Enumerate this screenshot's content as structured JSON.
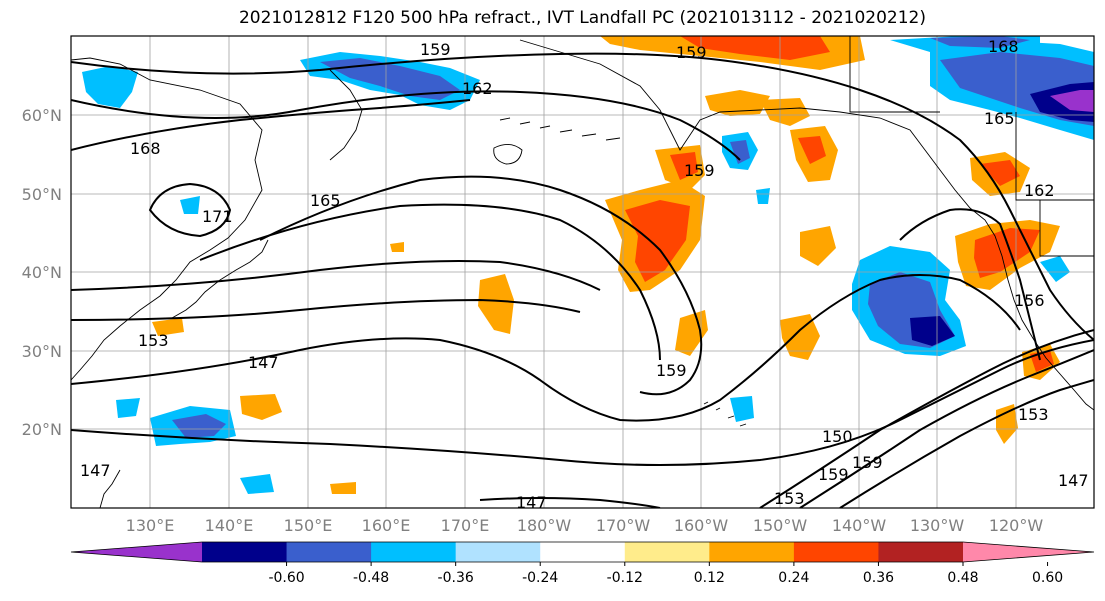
{
  "title": "2021012812 F120 500 hPa refract., IVT Landfall PC (2021013112 - 2021020212)",
  "lat_labels": [
    "60°N",
    "50°N",
    "40°N",
    "30°N",
    "20°N"
  ],
  "lon_labels": [
    "130°E",
    "140°E",
    "150°E",
    "160°E",
    "170°E",
    "180°W",
    "170°W",
    "160°W",
    "150°W",
    "140°W",
    "130°W",
    "120°W"
  ],
  "colorbar": {
    "colors": [
      "#9932cc",
      "#00008b",
      "#3a5fcd",
      "#00bfff",
      "#b0e2ff",
      "#ffffff",
      "#ffec8b",
      "#ffa500",
      "#ff4500",
      "#b22222",
      "#ff88aa"
    ],
    "tick_labels": [
      "-0.60",
      "-0.48",
      "-0.36",
      "-0.24",
      "-0.12",
      "0.12",
      "0.24",
      "0.36",
      "0.48",
      "0.60"
    ]
  },
  "contour_labels": [
    "159",
    "159",
    "162",
    "168",
    "165",
    "168",
    "165",
    "171",
    "159",
    "162",
    "156",
    "153",
    "147",
    "159",
    "150",
    "159",
    "159",
    "153",
    "147",
    "153",
    "147",
    "147"
  ]
}
